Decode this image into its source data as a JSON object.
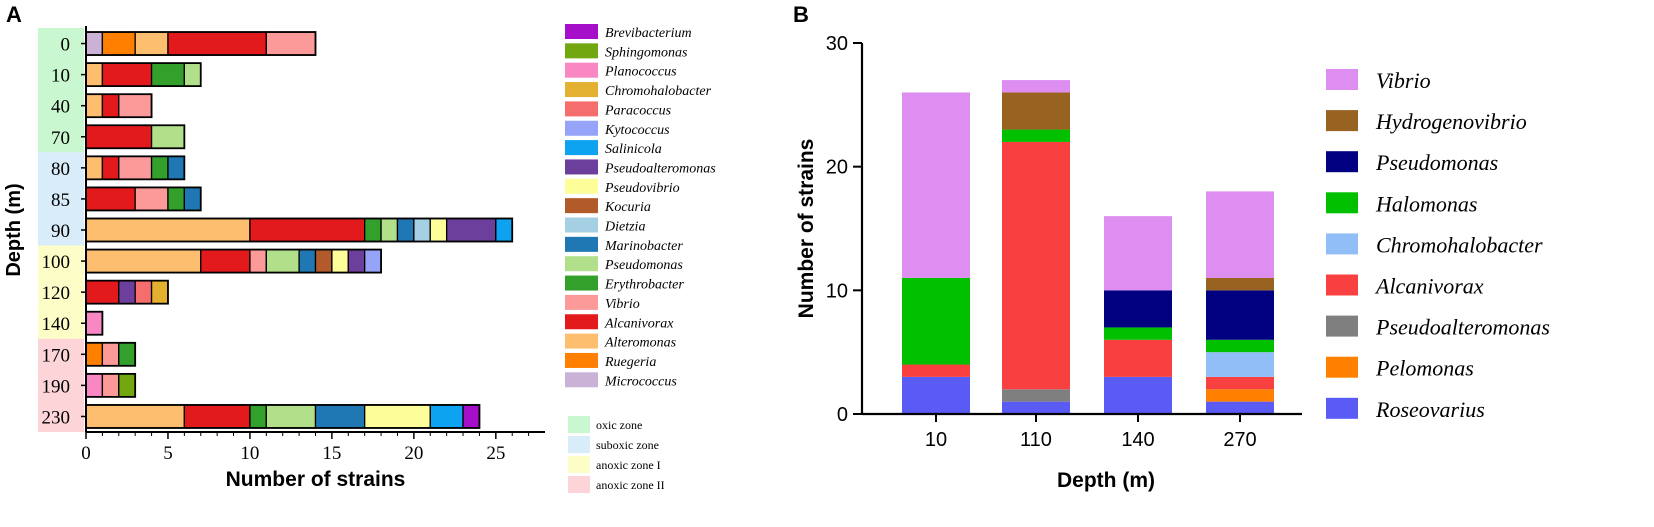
{
  "panels": {
    "a_label": "A",
    "b_label": "B"
  },
  "colors": {
    "Brevibacterium": "#a60fc9",
    "Sphingomonas": "#73a70f",
    "Planococcus": "#f887c3",
    "Chromohalobacter": "#e3b030",
    "Paracoccus": "#f56d6c",
    "Kytococcus": "#95a3f8",
    "Salinicola": "#0da3f1",
    "Pseudoalteromonas": "#6d3f9c",
    "Pseudovibrio": "#fdfd9a",
    "Kocuria": "#b25a2a",
    "Dietzia": "#a5cfe2",
    "Marinobacter": "#1f78b4",
    "Pseudomonas": "#b2df8a",
    "Erythrobacter": "#33a02c",
    "Vibrio": "#fb9a99",
    "Alcanivorax": "#e31a1c",
    "Alteromonas": "#fdbf6f",
    "Ruegeria": "#ff7f00",
    "Micrococcus": "#cab2d6",
    "zone_oxic": "#c8f7d0",
    "zone_suboxic": "#d9ecf9",
    "zone_anoxic1": "#fdfdc7",
    "zone_anoxic2": "#fdd5d8",
    "B_Vibrio": "#dd8ef0",
    "B_Hydrogenovibrio": "#986220",
    "B_Pseudomonas": "#000080",
    "B_Halomonas": "#00c000",
    "B_Chromohalobacter": "#92bef8",
    "B_Alcanivorax": "#f94040",
    "B_Pseudoalteromonas": "#7f7f7f",
    "B_Pelomonas": "#ff7f00",
    "B_Roseovarius": "#5a5af5"
  },
  "chart_data": [
    {
      "panel": "A",
      "type": "bar",
      "orientation": "horizontal",
      "stacked": true,
      "xlabel": "Number of strains",
      "ylabel": "Depth (m)",
      "xlim": [
        0,
        28
      ],
      "xticks": [
        "0",
        "5",
        "10",
        "15",
        "20",
        "25"
      ],
      "tick_values": [
        0,
        5,
        10,
        15,
        20,
        25
      ],
      "categories": [
        "0",
        "10",
        "40",
        "70",
        "80",
        "85",
        "90",
        "100",
        "120",
        "140",
        "170",
        "190",
        "230"
      ],
      "bars": [
        [
          [
            "Micrococcus",
            1
          ],
          [
            "Ruegeria",
            2
          ],
          [
            "Alteromonas",
            2
          ],
          [
            "Alcanivorax",
            6
          ],
          [
            "Vibrio",
            3
          ]
        ],
        [
          [
            "Alteromonas",
            1
          ],
          [
            "Alcanivorax",
            3
          ],
          [
            "Erythrobacter",
            2
          ],
          [
            "Pseudomonas",
            1
          ]
        ],
        [
          [
            "Alteromonas",
            1
          ],
          [
            "Alcanivorax",
            1
          ],
          [
            "Vibrio",
            2
          ]
        ],
        [
          [
            "Alcanivorax",
            4
          ],
          [
            "Pseudomonas",
            2
          ]
        ],
        [
          [
            "Alteromonas",
            1
          ],
          [
            "Alcanivorax",
            1
          ],
          [
            "Vibrio",
            2
          ],
          [
            "Erythrobacter",
            1
          ],
          [
            "Marinobacter",
            1
          ]
        ],
        [
          [
            "Alcanivorax",
            3
          ],
          [
            "Vibrio",
            2
          ],
          [
            "Erythrobacter",
            1
          ],
          [
            "Marinobacter",
            1
          ]
        ],
        [
          [
            "Alteromonas",
            10
          ],
          [
            "Alcanivorax",
            7
          ],
          [
            "Erythrobacter",
            1
          ],
          [
            "Pseudomonas",
            1
          ],
          [
            "Marinobacter",
            1
          ],
          [
            "Dietzia",
            1
          ],
          [
            "Pseudovibrio",
            1
          ],
          [
            "Pseudoalteromonas",
            3
          ],
          [
            "Salinicola",
            1
          ]
        ],
        [
          [
            "Alteromonas",
            7
          ],
          [
            "Alcanivorax",
            3
          ],
          [
            "Vibrio",
            1
          ],
          [
            "Pseudomonas",
            2
          ],
          [
            "Marinobacter",
            1
          ],
          [
            "Kocuria",
            1
          ],
          [
            "Pseudovibrio",
            1
          ],
          [
            "Pseudoalteromonas",
            1
          ],
          [
            "Kytococcus",
            1
          ]
        ],
        [
          [
            "Alcanivorax",
            2
          ],
          [
            "Pseudoalteromonas",
            1
          ],
          [
            "Paracoccus",
            1
          ],
          [
            "Chromohalobacter",
            1
          ]
        ],
        [
          [
            "Planococcus",
            1
          ]
        ],
        [
          [
            "Ruegeria",
            1
          ],
          [
            "Vibrio",
            1
          ],
          [
            "Erythrobacter",
            1
          ]
        ],
        [
          [
            "Planococcus",
            1
          ],
          [
            "Vibrio",
            1
          ],
          [
            "Sphingomonas",
            1
          ]
        ],
        [
          [
            "Alteromonas",
            6
          ],
          [
            "Alcanivorax",
            4
          ],
          [
            "Erythrobacter",
            1
          ],
          [
            "Pseudomonas",
            3
          ],
          [
            "Marinobacter",
            3
          ],
          [
            "Pseudovibrio",
            4
          ],
          [
            "Salinicola",
            2
          ],
          [
            "Brevibacterium",
            1
          ]
        ]
      ],
      "legend": [
        "Brevibacterium",
        "Sphingomonas",
        "Planococcus",
        "Chromohalobacter",
        "Paracoccus",
        "Kytococcus",
        "Salinicola",
        "Pseudoalteromonas",
        "Pseudovibrio",
        "Kocuria",
        "Dietzia",
        "Marinobacter",
        "Pseudomonas",
        "Erythrobacter",
        "Vibrio",
        "Alcanivorax",
        "Alteromonas",
        "Ruegeria",
        "Micrococcus"
      ],
      "zones": [
        {
          "label": "oxic zone",
          "color_key": "zone_oxic",
          "from": 0,
          "to": 3
        },
        {
          "label": "suboxic zone",
          "color_key": "zone_suboxic",
          "from": 4,
          "to": 6
        },
        {
          "label": "anoxic zone I",
          "color_key": "zone_anoxic1",
          "from": 7,
          "to": 9
        },
        {
          "label": "anoxic zone II",
          "color_key": "zone_anoxic2",
          "from": 10,
          "to": 12
        }
      ]
    },
    {
      "panel": "B",
      "type": "bar",
      "stacked": true,
      "xlabel": "Depth (m)",
      "ylabel": "Number of strains",
      "ylim": [
        0,
        30
      ],
      "yticks": [
        "0",
        "10",
        "20",
        "30"
      ],
      "tick_values": [
        0,
        10,
        20,
        30
      ],
      "categories": [
        "10",
        "110",
        "140",
        "270"
      ],
      "series_order": [
        "Roseovarius",
        "Pelomonas",
        "Pseudoalteromonas",
        "Alcanivorax",
        "Chromohalobacter",
        "Halomonas",
        "Pseudomonas",
        "Hydrogenovibrio",
        "Vibrio"
      ],
      "series": {
        "Roseovarius": [
          3,
          1,
          3,
          1
        ],
        "Pelomonas": [
          0,
          0,
          0,
          1
        ],
        "Pseudoalteromonas": [
          0,
          1,
          0,
          0
        ],
        "Alcanivorax": [
          1,
          20,
          3,
          1
        ],
        "Chromohalobacter": [
          0,
          0,
          0,
          2
        ],
        "Halomonas": [
          7,
          1,
          1,
          1
        ],
        "Pseudomonas": [
          0,
          0,
          3,
          4
        ],
        "Hydrogenovibrio": [
          0,
          3,
          0,
          1
        ],
        "Vibrio": [
          15,
          1,
          6,
          7
        ]
      },
      "legend": [
        "Vibrio",
        "Hydrogenovibrio",
        "Pseudomonas",
        "Halomonas",
        "Chromohalobacter",
        "Alcanivorax",
        "Pseudoalteromonas",
        "Pelomonas",
        "Roseovarius"
      ]
    }
  ]
}
